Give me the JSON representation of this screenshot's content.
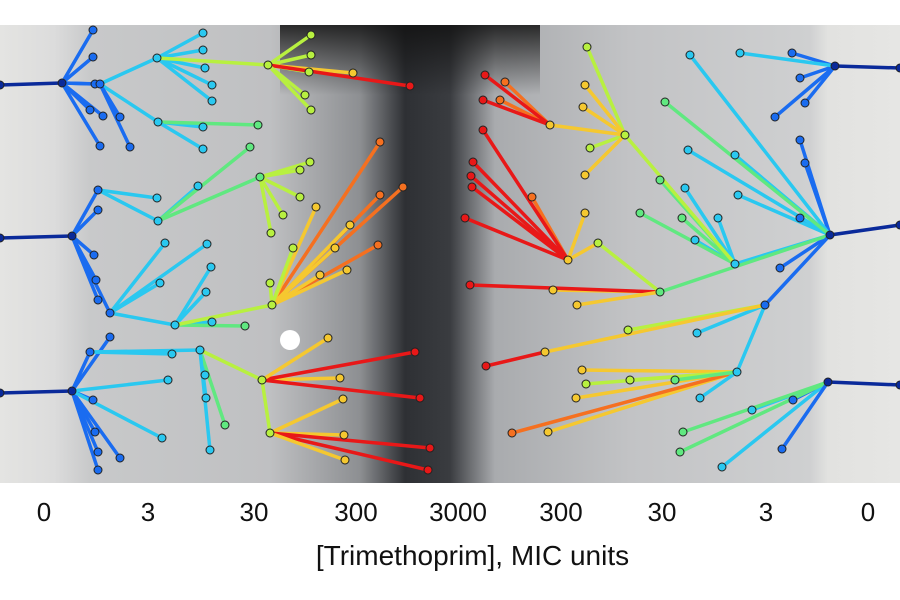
{
  "figure": {
    "x_ticks": [
      "0",
      "3",
      "30",
      "300",
      "3000",
      "300",
      "30",
      "3",
      "0"
    ],
    "xlabel": "[Trimethoprim], MIC units"
  },
  "colors": {
    "lowest_concentration": "#0a2a9a",
    "low": "#1a6cf0",
    "mid_low": "#2ac8f0",
    "mid": "#60e880",
    "mid_high": "#b8f040",
    "high": "#f5c830",
    "higher": "#f57020",
    "highest": "#e81818"
  }
}
